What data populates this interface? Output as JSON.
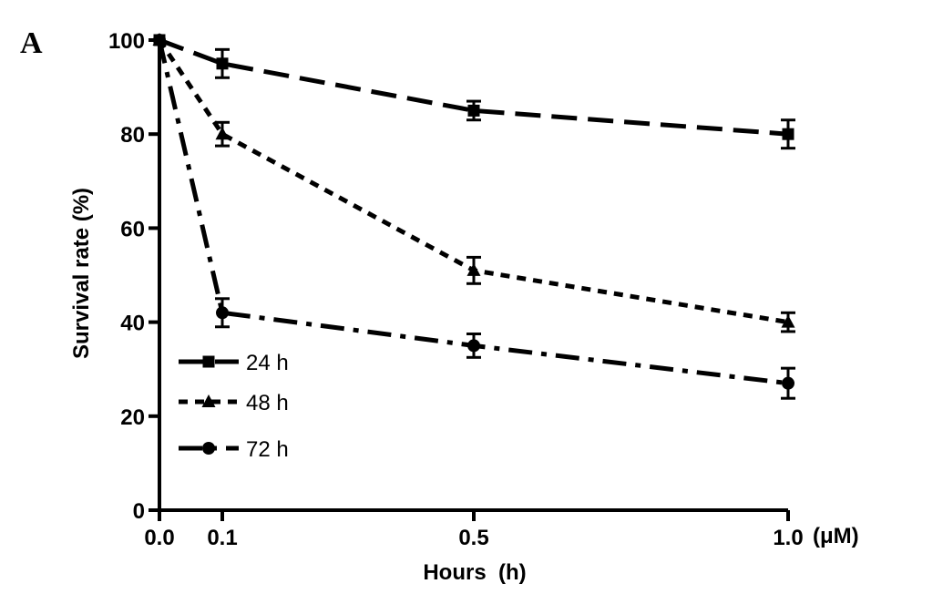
{
  "panel_label": "A",
  "chart_data": {
    "type": "line",
    "title": "",
    "xlabel": "Hours  (h)",
    "xunit": "(μM)",
    "ylabel": "Survival rate (%)",
    "x": [
      0.0,
      0.1,
      0.5,
      1.0
    ],
    "xticks": [
      "0.0",
      "0.1",
      "0.5",
      "1.0"
    ],
    "yticks": [
      0,
      20,
      40,
      60,
      80,
      100
    ],
    "xlim": [
      0,
      1.0
    ],
    "ylim": [
      0,
      100
    ],
    "grid": false,
    "legend_position": "bottom-left",
    "series": [
      {
        "name": "24 h",
        "marker": "square",
        "dash": "long-dash",
        "values": [
          100,
          95,
          85,
          80
        ],
        "errors": [
          0,
          3,
          2,
          3
        ]
      },
      {
        "name": "48 h",
        "marker": "triangle",
        "dash": "short-dash",
        "values": [
          100,
          80,
          51,
          40
        ],
        "errors": [
          0,
          2.5,
          2.8,
          2
        ]
      },
      {
        "name": "72 h",
        "marker": "circle",
        "dash": "dash-dot",
        "values": [
          100,
          42,
          35,
          27
        ],
        "errors": [
          0,
          3,
          2.5,
          3.2
        ]
      }
    ]
  }
}
